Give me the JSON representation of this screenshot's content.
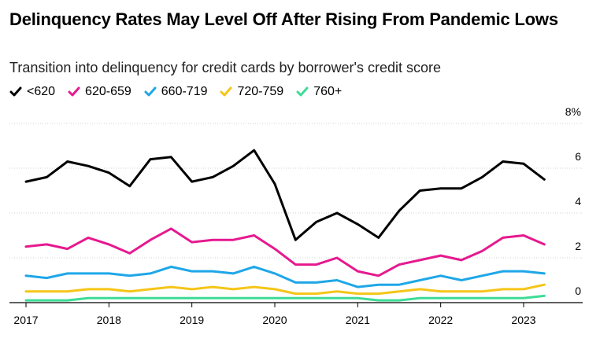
{
  "title": "Delinquency Rates May Level Off After Rising From Pandemic Lows",
  "subtitle": "Transition into delinquency for credit cards by borrower's credit score",
  "chart_data": {
    "type": "line",
    "title": "Delinquency Rates May Level Off After Rising From Pandemic Lows",
    "subtitle": "Transition into delinquency for credit cards by borrower's credit score",
    "xlabel": "",
    "ylabel": "",
    "ylim": [
      0,
      8
    ],
    "yticks": [
      0,
      2,
      4,
      6,
      8
    ],
    "ytick_labels": [
      "0",
      "2",
      "4",
      "6",
      "8%"
    ],
    "xlim": [
      2017.0,
      2023.75
    ],
    "xticks": [
      2017,
      2018,
      2019,
      2020,
      2021,
      2022,
      2023
    ],
    "xtick_labels": [
      "2017",
      "2018",
      "2019",
      "2020",
      "2021",
      "2022",
      "2023"
    ],
    "legend_position": "top-left",
    "x": [
      2017.0,
      2017.25,
      2017.5,
      2017.75,
      2018.0,
      2018.25,
      2018.5,
      2018.75,
      2019.0,
      2019.25,
      2019.5,
      2019.75,
      2020.0,
      2020.25,
      2020.5,
      2020.75,
      2021.0,
      2021.25,
      2021.5,
      2021.75,
      2022.0,
      2022.25,
      2022.5,
      2022.75,
      2023.0,
      2023.25
    ],
    "series": [
      {
        "name": "<620",
        "color": "#000000",
        "values": [
          5.4,
          5.6,
          6.3,
          6.1,
          5.8,
          5.2,
          6.4,
          6.5,
          5.4,
          5.6,
          6.1,
          6.8,
          5.3,
          2.8,
          3.6,
          4.0,
          3.5,
          2.9,
          4.1,
          5.0,
          5.1,
          5.1,
          5.6,
          6.3,
          6.2,
          5.5
        ]
      },
      {
        "name": "620-659",
        "color": "#e6198f",
        "values": [
          2.5,
          2.6,
          2.4,
          2.9,
          2.6,
          2.2,
          2.8,
          3.3,
          2.7,
          2.8,
          2.8,
          3.0,
          2.4,
          1.7,
          1.7,
          2.0,
          1.4,
          1.2,
          1.7,
          1.9,
          2.1,
          1.9,
          2.3,
          2.9,
          3.0,
          2.6
        ]
      },
      {
        "name": "660-719",
        "color": "#1ea7e8",
        "values": [
          1.2,
          1.1,
          1.3,
          1.3,
          1.3,
          1.2,
          1.3,
          1.6,
          1.4,
          1.4,
          1.3,
          1.6,
          1.3,
          0.9,
          0.9,
          1.0,
          0.7,
          0.8,
          0.8,
          1.0,
          1.2,
          1.0,
          1.2,
          1.4,
          1.4,
          1.3
        ]
      },
      {
        "name": "720-759",
        "color": "#f5c518",
        "values": [
          0.5,
          0.5,
          0.5,
          0.6,
          0.6,
          0.5,
          0.6,
          0.7,
          0.6,
          0.7,
          0.6,
          0.7,
          0.6,
          0.4,
          0.4,
          0.5,
          0.4,
          0.4,
          0.5,
          0.6,
          0.5,
          0.5,
          0.5,
          0.6,
          0.6,
          0.8
        ]
      },
      {
        "name": "760+",
        "color": "#3ddc97",
        "values": [
          0.1,
          0.1,
          0.1,
          0.2,
          0.2,
          0.2,
          0.2,
          0.2,
          0.2,
          0.2,
          0.2,
          0.2,
          0.2,
          0.2,
          0.2,
          0.2,
          0.2,
          0.1,
          0.1,
          0.2,
          0.2,
          0.2,
          0.2,
          0.2,
          0.2,
          0.3
        ]
      }
    ]
  }
}
